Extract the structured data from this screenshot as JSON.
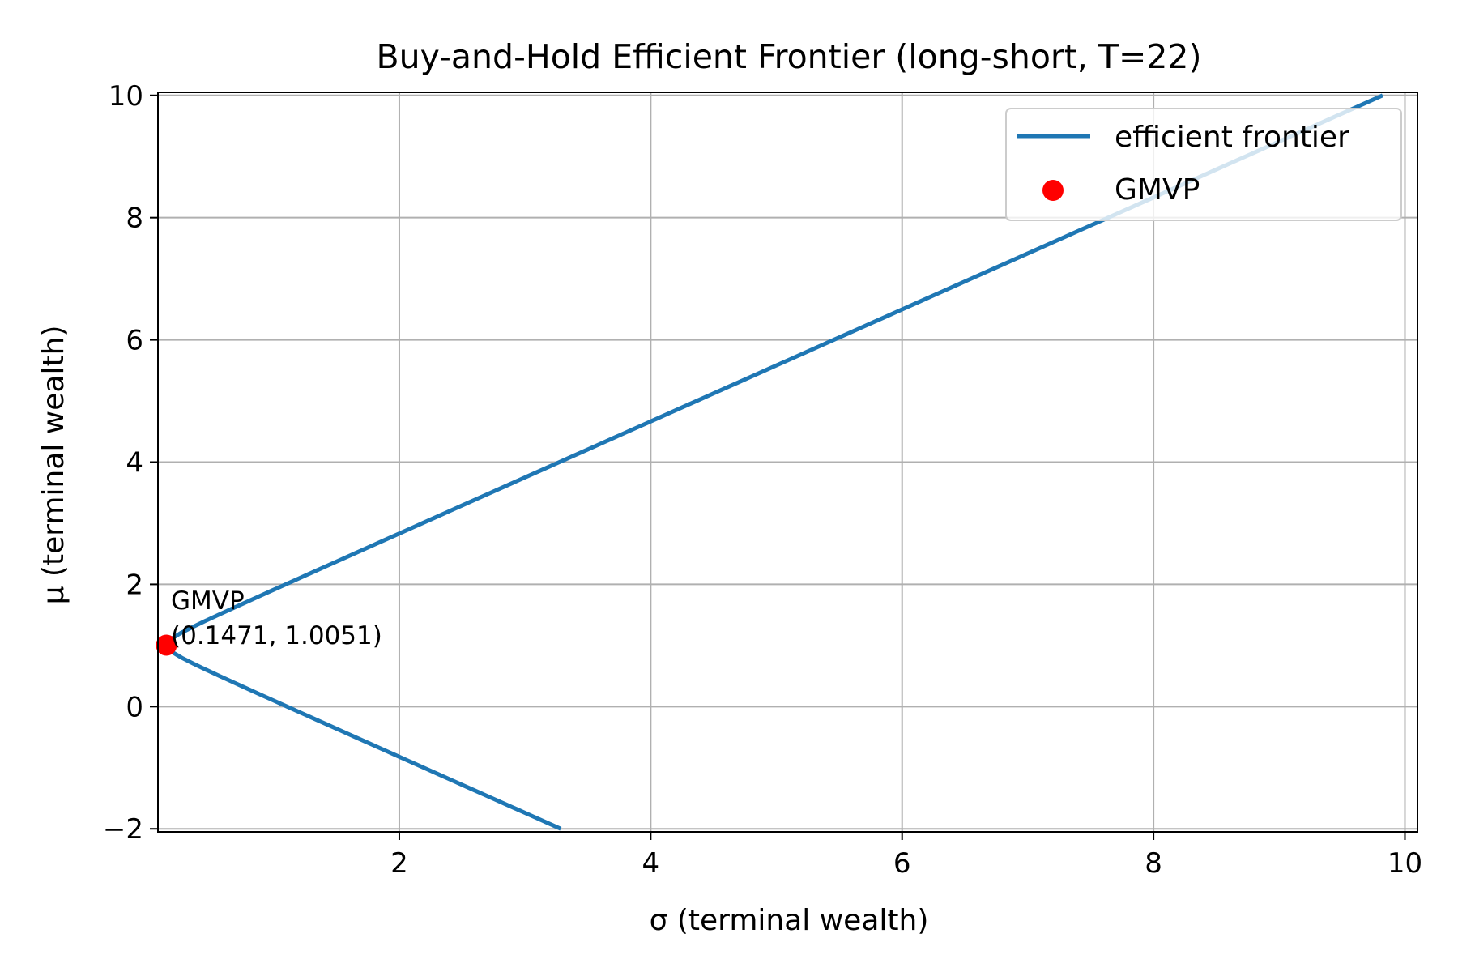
{
  "chart_data": {
    "type": "line",
    "title": "Buy-and-Hold Efficient Frontier (long-short, T=22)",
    "xlabel": "σ (terminal wealth)",
    "ylabel": "μ (terminal wealth)",
    "xlim": [
      0.08,
      10.1
    ],
    "ylim": [
      -2.05,
      10.05
    ],
    "xticks": [
      2,
      4,
      6,
      8,
      10
    ],
    "yticks": [
      -2,
      0,
      2,
      4,
      6,
      8,
      10
    ],
    "ytick_labels": [
      "−2",
      "0",
      "2",
      "4",
      "6",
      "8",
      "10"
    ],
    "grid": true,
    "legend_position": "top-right",
    "series": [
      {
        "name": "efficient frontier",
        "kind": "line",
        "color": "#1f77b4",
        "gmvp": [
          0.1471,
          1.0051
        ],
        "slope": 0.9158,
        "y_range": [
          -2.0,
          10.0
        ]
      },
      {
        "name": "GMVP",
        "kind": "scatter",
        "color": "#ff0000",
        "points": [
          [
            0.1471,
            1.0051
          ]
        ]
      }
    ],
    "annotations": [
      {
        "lines": [
          "GMVP",
          "(0.1471, 1.0051)"
        ],
        "x": 0.1471,
        "y": 1.0051
      }
    ]
  }
}
